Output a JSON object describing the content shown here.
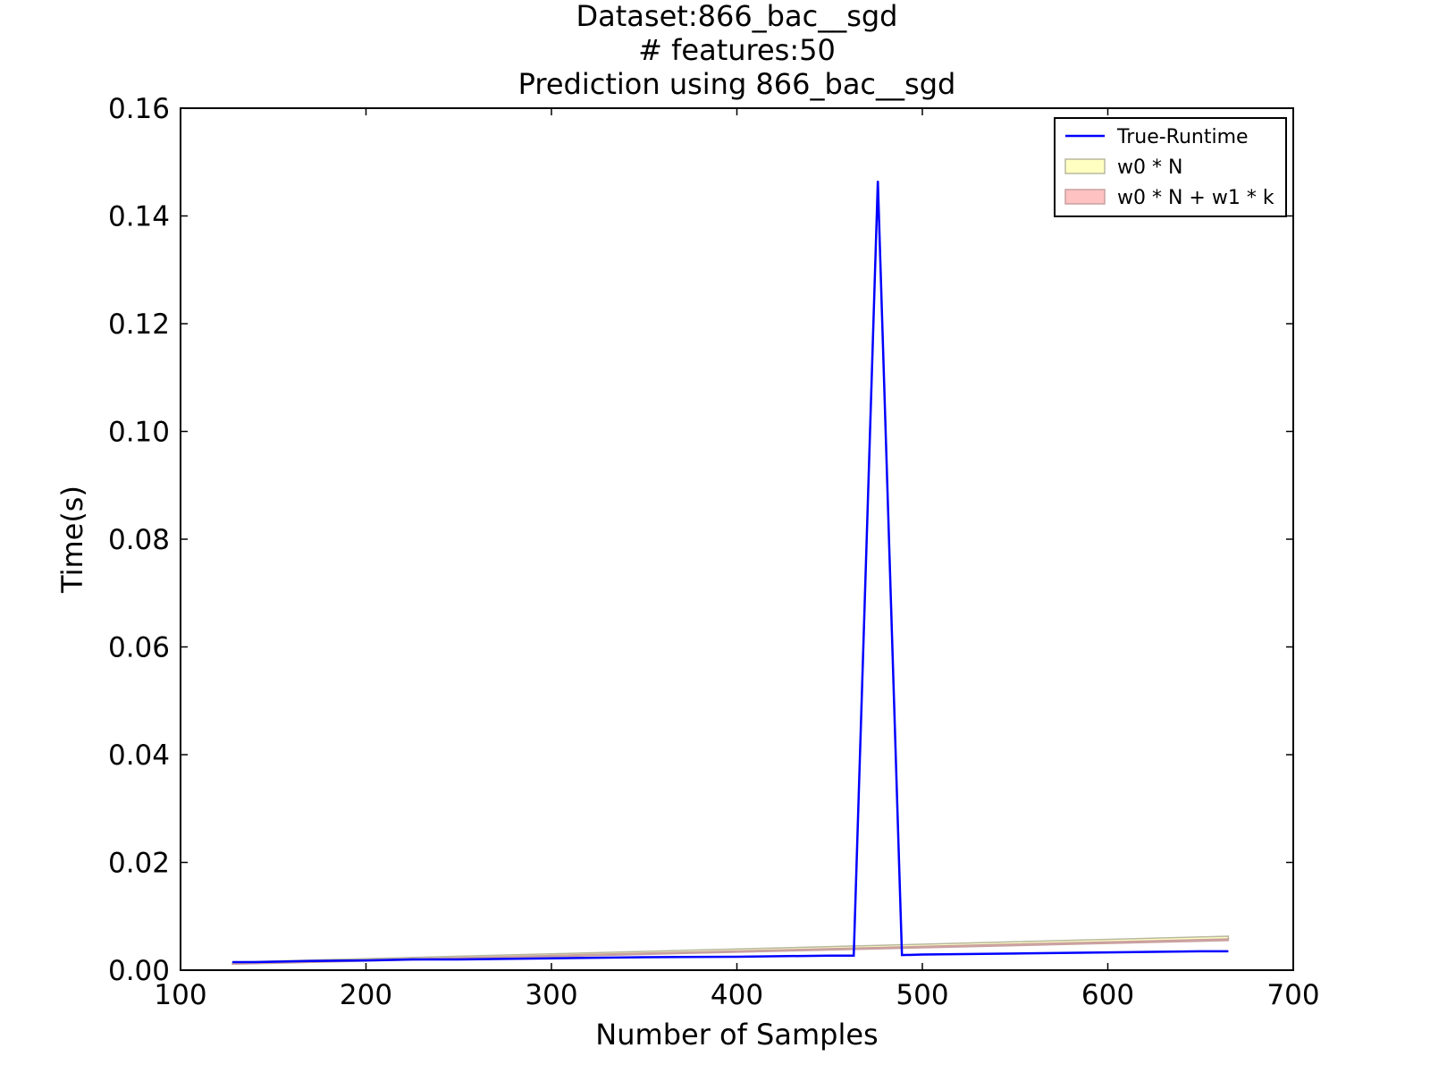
{
  "chart_data": {
    "type": "line",
    "title_lines": [
      "Dataset:866_bac__sgd",
      "# features:50",
      "Prediction using 866_bac__sgd"
    ],
    "xlabel": "Number of Samples",
    "ylabel": "Time(s)",
    "xlim": [
      100,
      700
    ],
    "ylim": [
      0.0,
      0.16
    ],
    "xticks": [
      100,
      200,
      300,
      400,
      500,
      600,
      700
    ],
    "xtick_labels": [
      "100",
      "200",
      "300",
      "400",
      "500",
      "600",
      "700"
    ],
    "yticks": [
      0.0,
      0.02,
      0.04,
      0.06,
      0.08,
      0.1,
      0.12,
      0.14,
      0.16
    ],
    "ytick_labels": [
      "0.00",
      "0.02",
      "0.04",
      "0.06",
      "0.08",
      "0.10",
      "0.12",
      "0.14",
      "0.16"
    ],
    "grid": false,
    "legend_position": "top-right",
    "series": [
      {
        "name": "True-Runtime",
        "kind": "line",
        "color": "#0000ff",
        "x": [
          128,
          140,
          170,
          200,
          225,
          250,
          300,
          350,
          400,
          450,
          463,
          476,
          489,
          500,
          550,
          600,
          650,
          665
        ],
        "y": [
          0.0015,
          0.0015,
          0.0017,
          0.0018,
          0.002,
          0.002,
          0.0022,
          0.0024,
          0.0025,
          0.0027,
          0.0027,
          0.1465,
          0.0028,
          0.0029,
          0.0031,
          0.0033,
          0.0035,
          0.0035
        ]
      },
      {
        "name": "w0 * N",
        "kind": "band",
        "color": "#ffff99",
        "edge_color": "#b8b8a0",
        "x": [
          128,
          665
        ],
        "y_low": [
          0.0012,
          0.0057
        ],
        "y_high": [
          0.0015,
          0.0063
        ]
      },
      {
        "name": "w0 * N + w1 * k",
        "kind": "band",
        "color": "#ff9999",
        "edge_color": "#c8a0a0",
        "x": [
          128,
          665
        ],
        "y_low": [
          0.0011,
          0.0055
        ],
        "y_high": [
          0.0013,
          0.0058
        ]
      }
    ]
  }
}
